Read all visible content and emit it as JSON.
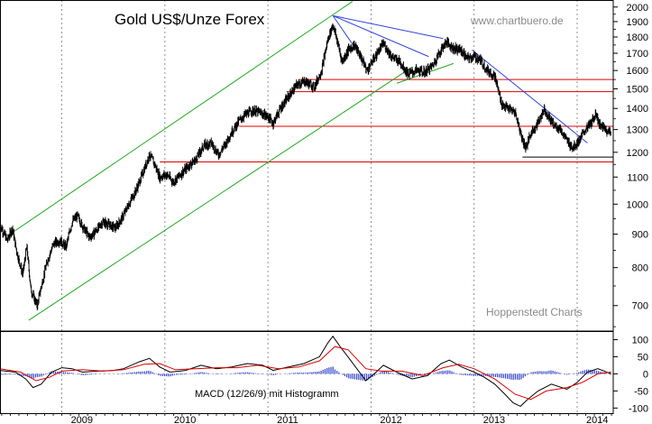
{
  "chart_data": [
    {
      "type": "candlestick",
      "title": "Gold US$/Unze Forex",
      "source": "www.chartbuero.de",
      "provider": "Hoppenstedt Charts",
      "y_scale": "log",
      "ylim": [
        640,
        2050
      ],
      "x_range": [
        2008.4,
        2014.35
      ],
      "y_ticks": [
        700,
        800,
        900,
        1000,
        1100,
        1200,
        1300,
        1400,
        1500,
        1600,
        1700,
        1800,
        1900,
        2000
      ],
      "x_ticks": [
        "2009",
        "2010",
        "2011",
        "2012",
        "2013",
        "2014"
      ],
      "grid": true,
      "price_path": [
        {
          "t": 2008.4,
          "v": 930
        },
        {
          "t": 2008.47,
          "v": 880
        },
        {
          "t": 2008.52,
          "v": 920
        },
        {
          "t": 2008.56,
          "v": 850
        },
        {
          "t": 2008.62,
          "v": 780
        },
        {
          "t": 2008.66,
          "v": 860
        },
        {
          "t": 2008.7,
          "v": 740
        },
        {
          "t": 2008.76,
          "v": 700
        },
        {
          "t": 2008.81,
          "v": 760
        },
        {
          "t": 2008.86,
          "v": 820
        },
        {
          "t": 2008.92,
          "v": 870
        },
        {
          "t": 2008.98,
          "v": 880
        },
        {
          "t": 2009.04,
          "v": 860
        },
        {
          "t": 2009.1,
          "v": 940
        },
        {
          "t": 2009.15,
          "v": 960
        },
        {
          "t": 2009.21,
          "v": 920
        },
        {
          "t": 2009.27,
          "v": 890
        },
        {
          "t": 2009.33,
          "v": 910
        },
        {
          "t": 2009.4,
          "v": 940
        },
        {
          "t": 2009.46,
          "v": 930
        },
        {
          "t": 2009.52,
          "v": 920
        },
        {
          "t": 2009.58,
          "v": 950
        },
        {
          "t": 2009.65,
          "v": 1000
        },
        {
          "t": 2009.72,
          "v": 1050
        },
        {
          "t": 2009.79,
          "v": 1120
        },
        {
          "t": 2009.85,
          "v": 1190
        },
        {
          "t": 2009.9,
          "v": 1150
        },
        {
          "t": 2009.95,
          "v": 1100
        },
        {
          "t": 2010.02,
          "v": 1110
        },
        {
          "t": 2010.08,
          "v": 1080
        },
        {
          "t": 2010.15,
          "v": 1110
        },
        {
          "t": 2010.22,
          "v": 1140
        },
        {
          "t": 2010.3,
          "v": 1170
        },
        {
          "t": 2010.38,
          "v": 1230
        },
        {
          "t": 2010.45,
          "v": 1240
        },
        {
          "t": 2010.52,
          "v": 1190
        },
        {
          "t": 2010.58,
          "v": 1230
        },
        {
          "t": 2010.65,
          "v": 1290
        },
        {
          "t": 2010.72,
          "v": 1340
        },
        {
          "t": 2010.78,
          "v": 1370
        },
        {
          "t": 2010.85,
          "v": 1390
        },
        {
          "t": 2010.92,
          "v": 1380
        },
        {
          "t": 2011.0,
          "v": 1360
        },
        {
          "t": 2011.05,
          "v": 1330
        },
        {
          "t": 2011.12,
          "v": 1400
        },
        {
          "t": 2011.2,
          "v": 1460
        },
        {
          "t": 2011.28,
          "v": 1520
        },
        {
          "t": 2011.36,
          "v": 1540
        },
        {
          "t": 2011.45,
          "v": 1510
        },
        {
          "t": 2011.52,
          "v": 1600
        },
        {
          "t": 2011.58,
          "v": 1780
        },
        {
          "t": 2011.63,
          "v": 1880
        },
        {
          "t": 2011.67,
          "v": 1780
        },
        {
          "t": 2011.72,
          "v": 1650
        },
        {
          "t": 2011.78,
          "v": 1720
        },
        {
          "t": 2011.84,
          "v": 1750
        },
        {
          "t": 2011.9,
          "v": 1680
        },
        {
          "t": 2011.96,
          "v": 1600
        },
        {
          "t": 2012.04,
          "v": 1680
        },
        {
          "t": 2012.12,
          "v": 1760
        },
        {
          "t": 2012.2,
          "v": 1680
        },
        {
          "t": 2012.28,
          "v": 1650
        },
        {
          "t": 2012.36,
          "v": 1580
        },
        {
          "t": 2012.44,
          "v": 1600
        },
        {
          "t": 2012.52,
          "v": 1590
        },
        {
          "t": 2012.6,
          "v": 1630
        },
        {
          "t": 2012.66,
          "v": 1700
        },
        {
          "t": 2012.73,
          "v": 1770
        },
        {
          "t": 2012.8,
          "v": 1730
        },
        {
          "t": 2012.87,
          "v": 1720
        },
        {
          "t": 2012.93,
          "v": 1670
        },
        {
          "t": 2013.0,
          "v": 1680
        },
        {
          "t": 2013.06,
          "v": 1660
        },
        {
          "t": 2013.13,
          "v": 1600
        },
        {
          "t": 2013.2,
          "v": 1570
        },
        {
          "t": 2013.27,
          "v": 1420
        },
        {
          "t": 2013.33,
          "v": 1400
        },
        {
          "t": 2013.4,
          "v": 1380
        },
        {
          "t": 2013.46,
          "v": 1270
        },
        {
          "t": 2013.5,
          "v": 1220
        },
        {
          "t": 2013.56,
          "v": 1290
        },
        {
          "t": 2013.62,
          "v": 1330
        },
        {
          "t": 2013.68,
          "v": 1400
        },
        {
          "t": 2013.72,
          "v": 1360
        },
        {
          "t": 2013.78,
          "v": 1320
        },
        {
          "t": 2013.84,
          "v": 1300
        },
        {
          "t": 2013.9,
          "v": 1250
        },
        {
          "t": 2013.96,
          "v": 1220
        },
        {
          "t": 2014.02,
          "v": 1250
        },
        {
          "t": 2014.08,
          "v": 1300
        },
        {
          "t": 2014.14,
          "v": 1330
        },
        {
          "t": 2014.18,
          "v": 1380
        },
        {
          "t": 2014.22,
          "v": 1320
        },
        {
          "t": 2014.28,
          "v": 1300
        },
        {
          "t": 2014.33,
          "v": 1280
        }
      ],
      "horizontal_levels": [
        {
          "v": 1550,
          "t0": 2011.3,
          "t1": 2014.35,
          "color": "#dd0000"
        },
        {
          "v": 1485,
          "t0": 2011.18,
          "t1": 2014.35,
          "color": "#dd0000"
        },
        {
          "v": 1315,
          "t0": 2010.72,
          "t1": 2014.35,
          "color": "#dd0000"
        },
        {
          "v": 1180,
          "t0": 2013.47,
          "t1": 2014.35,
          "color": "#000000"
        },
        {
          "v": 1160,
          "t0": 2009.95,
          "t1": 2014.35,
          "color": "#dd0000"
        }
      ],
      "trend_lines": [
        {
          "t0": 2008.52,
          "v0": 905,
          "t1": 2011.82,
          "v1": 2040,
          "color": "#22aa22"
        },
        {
          "t0": 2008.68,
          "v0": 665,
          "t1": 2012.4,
          "v1": 1620,
          "color": "#22aa22"
        },
        {
          "t0": 2012.25,
          "v0": 1530,
          "t1": 2012.8,
          "v1": 1640,
          "color": "#22aa22"
        },
        {
          "t0": 2011.63,
          "v0": 1940,
          "t1": 2012.7,
          "v1": 1790,
          "color": "#3344dd"
        },
        {
          "t0": 2011.63,
          "v0": 1940,
          "t1": 2012.56,
          "v1": 1680,
          "color": "#3344dd"
        },
        {
          "t0": 2011.63,
          "v0": 1940,
          "t1": 2011.95,
          "v1": 1640,
          "color": "#3344dd"
        },
        {
          "t0": 2012.98,
          "v0": 1720,
          "t1": 2014.1,
          "v1": 1240,
          "color": "#3344dd"
        }
      ]
    },
    {
      "type": "macd",
      "label": "MACD (12/26/9) mit Histogramm",
      "ylim": [
        -115,
        125
      ],
      "y_ticks": [
        100,
        50,
        0,
        -50,
        -100
      ],
      "series": [
        {
          "color": "#000000",
          "points": [
            {
              "t": 2008.4,
              "v": 10
            },
            {
              "t": 2008.55,
              "v": 5
            },
            {
              "t": 2008.65,
              "v": -15
            },
            {
              "t": 2008.72,
              "v": -40
            },
            {
              "t": 2008.8,
              "v": -30
            },
            {
              "t": 2008.9,
              "v": 5
            },
            {
              "t": 2009.0,
              "v": 18
            },
            {
              "t": 2009.1,
              "v": 15
            },
            {
              "t": 2009.2,
              "v": 5
            },
            {
              "t": 2009.35,
              "v": 8
            },
            {
              "t": 2009.5,
              "v": 10
            },
            {
              "t": 2009.6,
              "v": 15
            },
            {
              "t": 2009.75,
              "v": 35
            },
            {
              "t": 2009.85,
              "v": 45
            },
            {
              "t": 2009.95,
              "v": 20
            },
            {
              "t": 2010.05,
              "v": 5
            },
            {
              "t": 2010.2,
              "v": 10
            },
            {
              "t": 2010.35,
              "v": 25
            },
            {
              "t": 2010.5,
              "v": 15
            },
            {
              "t": 2010.65,
              "v": 20
            },
            {
              "t": 2010.8,
              "v": 30
            },
            {
              "t": 2010.95,
              "v": 25
            },
            {
              "t": 2011.05,
              "v": 10
            },
            {
              "t": 2011.2,
              "v": 20
            },
            {
              "t": 2011.35,
              "v": 30
            },
            {
              "t": 2011.5,
              "v": 50
            },
            {
              "t": 2011.58,
              "v": 90
            },
            {
              "t": 2011.63,
              "v": 110
            },
            {
              "t": 2011.7,
              "v": 80
            },
            {
              "t": 2011.8,
              "v": 40
            },
            {
              "t": 2011.95,
              "v": -20
            },
            {
              "t": 2012.05,
              "v": 5
            },
            {
              "t": 2012.12,
              "v": 25
            },
            {
              "t": 2012.25,
              "v": 5
            },
            {
              "t": 2012.4,
              "v": -15
            },
            {
              "t": 2012.55,
              "v": -5
            },
            {
              "t": 2012.68,
              "v": 30
            },
            {
              "t": 2012.76,
              "v": 40
            },
            {
              "t": 2012.88,
              "v": 20
            },
            {
              "t": 2013.0,
              "v": 5
            },
            {
              "t": 2013.1,
              "v": -10
            },
            {
              "t": 2013.2,
              "v": -30
            },
            {
              "t": 2013.3,
              "v": -60
            },
            {
              "t": 2013.38,
              "v": -85
            },
            {
              "t": 2013.45,
              "v": -95
            },
            {
              "t": 2013.52,
              "v": -75
            },
            {
              "t": 2013.62,
              "v": -50
            },
            {
              "t": 2013.75,
              "v": -30
            },
            {
              "t": 2013.9,
              "v": -45
            },
            {
              "t": 2014.0,
              "v": -25
            },
            {
              "t": 2014.1,
              "v": 5
            },
            {
              "t": 2014.2,
              "v": 15
            },
            {
              "t": 2014.33,
              "v": 0
            }
          ]
        },
        {
          "color": "#dd0000",
          "points": [
            {
              "t": 2008.4,
              "v": 15
            },
            {
              "t": 2008.6,
              "v": 5
            },
            {
              "t": 2008.75,
              "v": -20
            },
            {
              "t": 2008.88,
              "v": -10
            },
            {
              "t": 2009.0,
              "v": 8
            },
            {
              "t": 2009.2,
              "v": 12
            },
            {
              "t": 2009.4,
              "v": 8
            },
            {
              "t": 2009.6,
              "v": 12
            },
            {
              "t": 2009.8,
              "v": 28
            },
            {
              "t": 2009.95,
              "v": 30
            },
            {
              "t": 2010.1,
              "v": 12
            },
            {
              "t": 2010.3,
              "v": 15
            },
            {
              "t": 2010.5,
              "v": 18
            },
            {
              "t": 2010.7,
              "v": 18
            },
            {
              "t": 2010.9,
              "v": 25
            },
            {
              "t": 2011.1,
              "v": 15
            },
            {
              "t": 2011.3,
              "v": 20
            },
            {
              "t": 2011.5,
              "v": 38
            },
            {
              "t": 2011.65,
              "v": 80
            },
            {
              "t": 2011.78,
              "v": 70
            },
            {
              "t": 2011.95,
              "v": 15
            },
            {
              "t": 2012.1,
              "v": 8
            },
            {
              "t": 2012.3,
              "v": 8
            },
            {
              "t": 2012.5,
              "v": -5
            },
            {
              "t": 2012.7,
              "v": 18
            },
            {
              "t": 2012.85,
              "v": 28
            },
            {
              "t": 2013.0,
              "v": 15
            },
            {
              "t": 2013.2,
              "v": -15
            },
            {
              "t": 2013.4,
              "v": -60
            },
            {
              "t": 2013.55,
              "v": -75
            },
            {
              "t": 2013.7,
              "v": -50
            },
            {
              "t": 2013.9,
              "v": -40
            },
            {
              "t": 2014.05,
              "v": -25
            },
            {
              "t": 2014.2,
              "v": 0
            },
            {
              "t": 2014.33,
              "v": 5
            }
          ]
        }
      ]
    }
  ]
}
